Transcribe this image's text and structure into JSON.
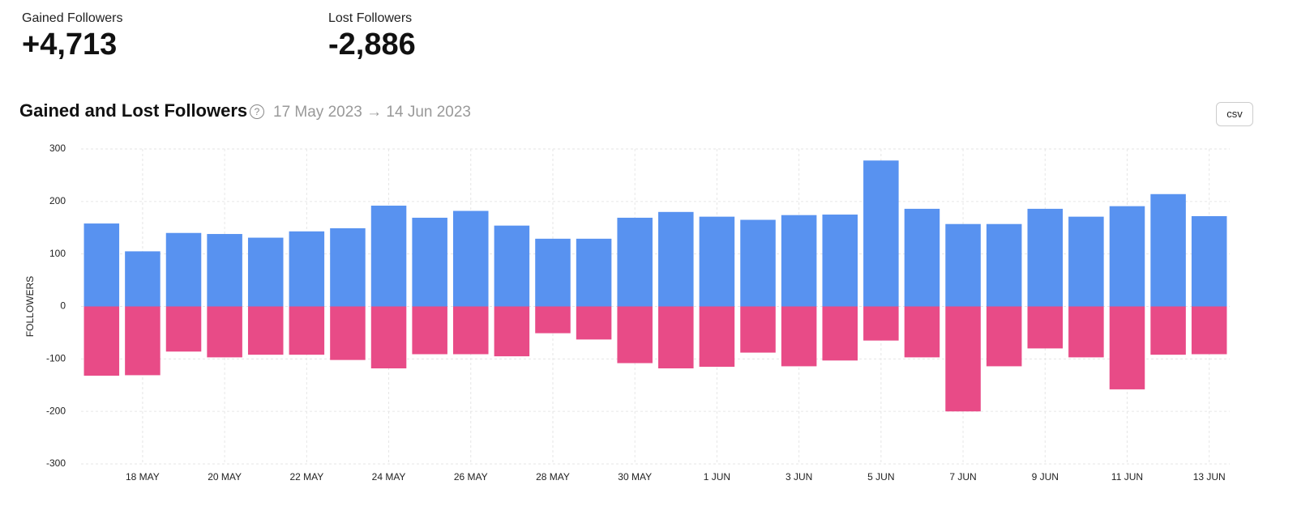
{
  "stats": [
    {
      "label": "Gained Followers",
      "value": "+4,713"
    },
    {
      "label": "Lost Followers",
      "value": "-2,886"
    }
  ],
  "chart_data": {
    "type": "bar",
    "title": "Gained and Lost Followers",
    "subtitle": "17 May 2023 → 14 Jun 2023",
    "button": "csv",
    "y_label": "FOLLOWERS",
    "categories": [
      null,
      "18 MAY",
      null,
      "20 MAY",
      null,
      "22 MAY",
      null,
      "24 MAY",
      null,
      "26 MAY",
      null,
      "28 MAY",
      null,
      "30 MAY",
      null,
      "1 JUN",
      null,
      "3 JUN",
      null,
      "5 JUN",
      null,
      "7 JUN",
      null,
      "9 JUN",
      null,
      "11 JUN",
      null,
      "13 JUN"
    ],
    "series": [
      {
        "color": "#5892f0",
        "values": [
          158,
          105,
          140,
          138,
          131,
          143,
          149,
          192,
          169,
          182,
          154,
          129,
          129,
          169,
          180,
          171,
          165,
          174,
          175,
          278,
          186,
          157,
          157,
          186,
          171,
          191,
          214,
          172
        ]
      },
      {
        "color": "#e84b87",
        "values": [
          -132,
          -131,
          -86,
          -97,
          -92,
          -92,
          -102,
          -118,
          -91,
          -91,
          -95,
          -51,
          -63,
          -108,
          -118,
          -115,
          -88,
          -114,
          -103,
          -65,
          -97,
          -200,
          -114,
          -80,
          -97,
          -158,
          -92,
          -91
        ]
      }
    ],
    "ylim": [
      -300,
      300
    ],
    "yticks": [
      -300,
      -200,
      -100,
      0,
      100,
      200,
      300
    ],
    "grid": true
  }
}
